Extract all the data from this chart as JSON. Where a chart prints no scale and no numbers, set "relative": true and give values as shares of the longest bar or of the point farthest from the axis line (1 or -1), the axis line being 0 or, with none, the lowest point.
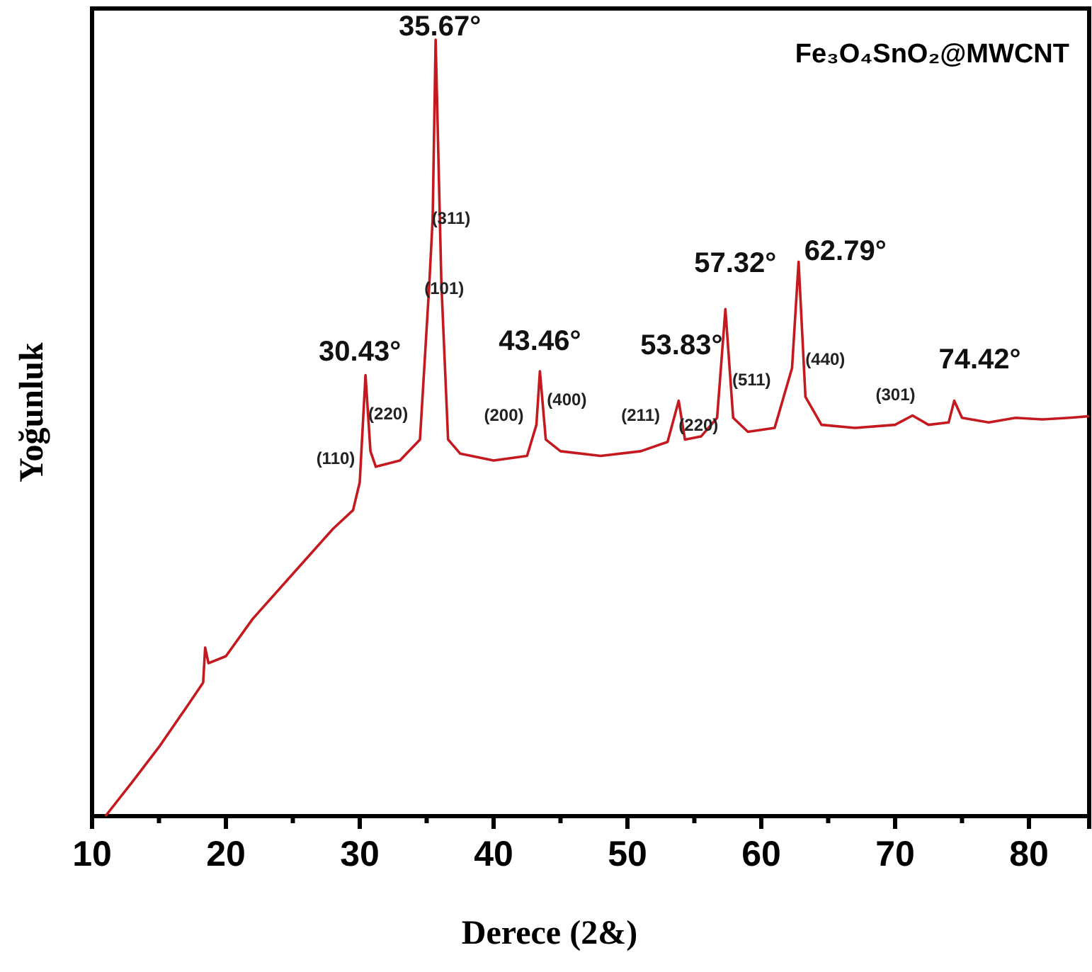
{
  "chart_data": {
    "type": "line",
    "relative": true,
    "xlabel": "Derece (2&)",
    "ylabel": "Yoğunluk",
    "xlim": [
      10,
      84.5
    ],
    "xticks": [
      10,
      20,
      30,
      40,
      50,
      60,
      70,
      80
    ],
    "tick_labels": "x",
    "grid": false,
    "marker": "none",
    "line_style": "solid",
    "series": [
      {
        "color": "#c41a1f",
        "x": [
          11,
          13,
          15,
          17,
          18.3,
          18.45,
          18.7,
          20,
          22,
          25,
          28,
          29.5,
          30,
          30.43,
          30.8,
          31.2,
          33,
          34.5,
          35.2,
          35.45,
          35.67,
          36.1,
          36.6,
          37.5,
          40,
          42.5,
          43.2,
          43.46,
          43.9,
          45,
          48,
          51,
          53,
          53.83,
          54.3,
          55.5,
          56.7,
          57.32,
          57.9,
          59,
          61,
          62.3,
          62.79,
          63.3,
          64.5,
          67,
          70,
          71.3,
          72.5,
          74,
          74.42,
          75,
          77,
          79,
          81,
          83,
          84.5
        ],
        "values": [
          0,
          0.044,
          0.089,
          0.139,
          0.172,
          0.217,
          0.197,
          0.206,
          0.254,
          0.312,
          0.37,
          0.394,
          0.43,
          0.568,
          0.47,
          0.45,
          0.458,
          0.485,
          0.686,
          0.77,
          1,
          0.686,
          0.485,
          0.467,
          0.458,
          0.464,
          0.504,
          0.573,
          0.485,
          0.47,
          0.464,
          0.47,
          0.482,
          0.535,
          0.485,
          0.489,
          0.513,
          0.653,
          0.513,
          0.495,
          0.5,
          0.577,
          0.714,
          0.54,
          0.504,
          0.5,
          0.504,
          0.516,
          0.504,
          0.507,
          0.535,
          0.513,
          0.507,
          0.513,
          0.511,
          0.513,
          0.515
        ]
      }
    ],
    "annotations": [
      "Fe₃O₄SnO₂@MWCNT",
      {
        "text": "35.67°",
        "x": 35.67,
        "y": 1
      },
      {
        "text": "30.43°",
        "x": 30.43,
        "y": 0.568
      },
      {
        "text": "43.46°",
        "x": 43.46,
        "y": 0.573
      },
      {
        "text": "53.83°",
        "x": 53.83,
        "y": 0.535
      },
      {
        "text": "57.32°",
        "x": 57.32,
        "y": 0.653
      },
      {
        "text": "62.79°",
        "x": 62.79,
        "y": 0.714
      },
      {
        "text": "74.42°",
        "x": 74.42,
        "y": 0.535
      },
      {
        "text": "(110)",
        "x": 30,
        "y": 0.43
      },
      {
        "text": "(220)",
        "x": 30.43,
        "y": 0.568
      },
      {
        "text": "(311)",
        "x": 35.45,
        "y": 0.77
      },
      {
        "text": "(101)",
        "x": 36.1,
        "y": 0.686
      },
      {
        "text": "(200)",
        "x": 43.2,
        "y": 0.504
      },
      {
        "text": "(400)",
        "x": 43.46,
        "y": 0.573
      },
      {
        "text": "(211)",
        "x": 53,
        "y": 0.482
      },
      {
        "text": "(220)",
        "x": 53.83,
        "y": 0.535
      },
      {
        "text": "(511)",
        "x": 57.9,
        "y": 0.513
      },
      {
        "text": "(440)",
        "x": 63.3,
        "y": 0.54
      },
      {
        "text": "(301)",
        "x": 71.3,
        "y": 0.516
      }
    ]
  }
}
